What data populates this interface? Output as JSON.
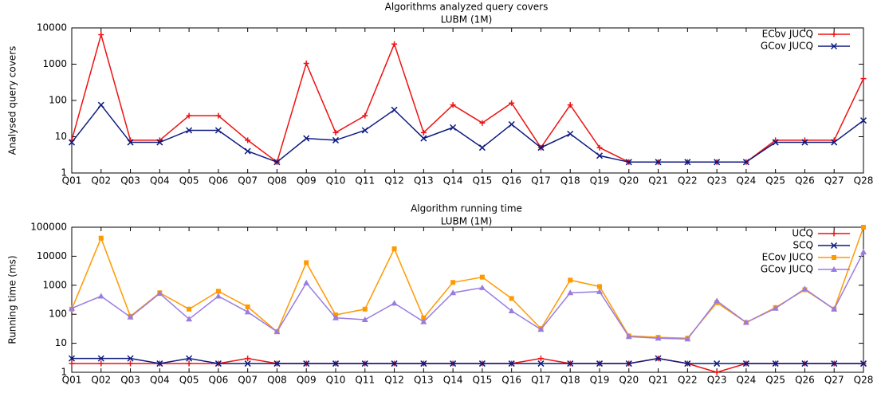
{
  "chart_data": [
    {
      "type": "line",
      "title": "Algorithms analyzed query covers",
      "subtitle": "LUBM (1M)",
      "y_label": "Analysed query covers",
      "log_scale": true,
      "legend": "upper right",
      "categories": [
        "Q01",
        "Q02",
        "Q03",
        "Q04",
        "Q05",
        "Q06",
        "Q07",
        "Q08",
        "Q09",
        "Q10",
        "Q11",
        "Q12",
        "Q13",
        "Q14",
        "Q15",
        "Q16",
        "Q17",
        "Q18",
        "Q19",
        "Q20",
        "Q21",
        "Q22",
        "Q23",
        "Q24",
        "Q25",
        "Q26",
        "Q27",
        "Q28"
      ],
      "ylim": [
        1,
        10000
      ],
      "yticks": [
        1,
        10,
        100,
        1000,
        10000
      ],
      "series": [
        {
          "name": "ECov JUCQ",
          "color": "#ee1111",
          "marker": "plus",
          "values": [
            8,
            6500,
            8,
            8,
            38,
            38,
            8,
            2,
            1050,
            13,
            38,
            3600,
            13,
            75,
            24,
            85,
            5,
            75,
            5,
            2,
            2,
            2,
            2,
            2,
            8,
            8,
            8,
            400
          ]
        },
        {
          "name": "GCov JUCQ",
          "color": "#0d1a80",
          "marker": "cross",
          "values": [
            7,
            75,
            7,
            7,
            15,
            15,
            4,
            2,
            9,
            8,
            15,
            55,
            9,
            18,
            5,
            22,
            5,
            12,
            3,
            2,
            2,
            2,
            2,
            2,
            7,
            7,
            7,
            28
          ]
        }
      ]
    },
    {
      "type": "line",
      "title": "Algorithm running time",
      "subtitle": "LUBM (1M)",
      "y_label": "Running time (ms)",
      "log_scale": true,
      "legend": "upper right",
      "categories": [
        "Q01",
        "Q02",
        "Q03",
        "Q04",
        "Q05",
        "Q06",
        "Q07",
        "Q08",
        "Q09",
        "Q10",
        "Q11",
        "Q12",
        "Q13",
        "Q14",
        "Q15",
        "Q16",
        "Q17",
        "Q18",
        "Q19",
        "Q20",
        "Q21",
        "Q22",
        "Q23",
        "Q24",
        "Q25",
        "Q26",
        "Q27",
        "Q28"
      ],
      "ylim": [
        1,
        100000
      ],
      "yticks": [
        1,
        10,
        100,
        1000,
        10000,
        100000
      ],
      "series": [
        {
          "name": "UCQ",
          "color": "#ee1111",
          "marker": "plus",
          "values": [
            2,
            2,
            2,
            2,
            2,
            2,
            3,
            2,
            2,
            2,
            2,
            2,
            2,
            2,
            2,
            2,
            3,
            2,
            2,
            2,
            3,
            2,
            1,
            2,
            2,
            2,
            2,
            2
          ]
        },
        {
          "name": "SCQ",
          "color": "#0d1a80",
          "marker": "cross",
          "values": [
            3,
            3,
            3,
            2,
            3,
            2,
            2,
            2,
            2,
            2,
            2,
            2,
            2,
            2,
            2,
            2,
            2,
            2,
            2,
            2,
            3,
            2,
            2,
            2,
            2,
            2,
            2,
            2
          ]
        },
        {
          "name": "ECov JUCQ",
          "color": "#ff9900",
          "marker": "square",
          "values": [
            150,
            42000,
            85,
            550,
            150,
            620,
            180,
            25,
            6000,
            95,
            150,
            18000,
            75,
            1250,
            1900,
            350,
            32,
            1500,
            900,
            18,
            16,
            15,
            250,
            52,
            170,
            700,
            150,
            100000
          ]
        },
        {
          "name": "GCov JUCQ",
          "color": "#9a7ce0",
          "marker": "triangle",
          "values": [
            160,
            420,
            80,
            520,
            68,
            420,
            120,
            25,
            1200,
            75,
            65,
            240,
            55,
            550,
            820,
            130,
            30,
            550,
            600,
            17,
            15,
            14,
            290,
            52,
            160,
            750,
            150,
            14000
          ]
        }
      ]
    }
  ]
}
